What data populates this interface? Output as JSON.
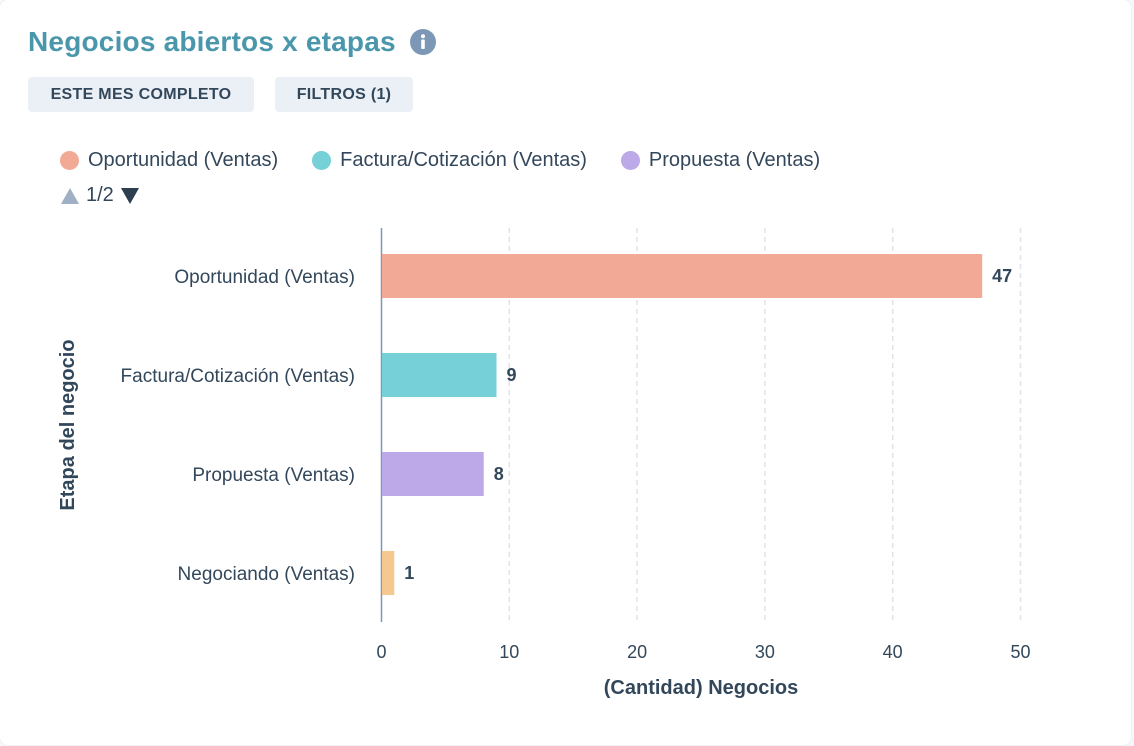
{
  "header": {
    "title": "Negocios abiertos x etapas",
    "date_range_button": "ESTE MES COMPLETO",
    "filters_button": "FILTROS (1)"
  },
  "legend": {
    "items": [
      {
        "label": "Oportunidad (Ventas)",
        "color": "#f2a995"
      },
      {
        "label": "Factura/Cotización (Ventas)",
        "color": "#76d0d8"
      },
      {
        "label": "Propuesta (Ventas)",
        "color": "#bda9e8"
      }
    ],
    "page_indicator": "1/2"
  },
  "colors": {
    "title": "#4a97ac",
    "info_icon": "#7c98b6",
    "text": "#33475b"
  },
  "chart_data": {
    "type": "bar",
    "orientation": "horizontal",
    "categories": [
      "Oportunidad (Ventas)",
      "Factura/Cotización (Ventas)",
      "Propuesta (Ventas)",
      "Negociando (Ventas)"
    ],
    "values": [
      47,
      9,
      8,
      1
    ],
    "colors": [
      "#f2a995",
      "#76d0d8",
      "#bda9e8",
      "#f5c88f"
    ],
    "data_labels": [
      "47",
      "9",
      "8",
      "1"
    ],
    "xlabel": "(Cantidad) Negocios",
    "ylabel": "Etapa del negocio",
    "xlim": [
      0,
      50
    ],
    "xticks": [
      0,
      10,
      20,
      30,
      40,
      50
    ],
    "grid": "vertical dashed"
  }
}
